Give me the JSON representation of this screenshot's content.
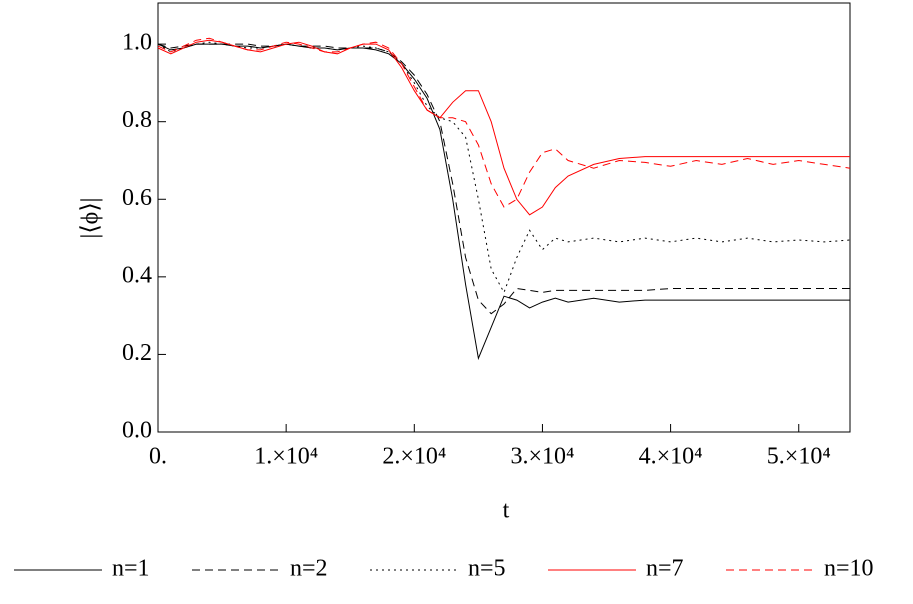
{
  "chart_data": {
    "type": "line",
    "x_label": "t",
    "y_label": "|⟨ϕ⟩|",
    "x": [
      0,
      1000,
      2000,
      3000,
      4000,
      5000,
      6000,
      7000,
      8000,
      9000,
      10000,
      11000,
      12000,
      13000,
      14000,
      15000,
      16000,
      17000,
      18000,
      19000,
      20000,
      21000,
      22000,
      23000,
      24000,
      25000,
      26000,
      27000,
      28000,
      29000,
      30000,
      31000,
      32000,
      34000,
      36000,
      38000,
      40000,
      42000,
      44000,
      46000,
      48000,
      50000,
      52000,
      54000
    ],
    "series": [
      {
        "name": "n=1",
        "color": "#000000",
        "dash": "solid",
        "values": [
          1.0,
          0.985,
          0.99,
          1.0,
          1.0,
          1.0,
          0.995,
          0.995,
          0.99,
          0.995,
          1.0,
          0.995,
          0.99,
          0.99,
          0.985,
          0.99,
          0.99,
          0.985,
          0.975,
          0.95,
          0.91,
          0.86,
          0.78,
          0.6,
          0.38,
          0.19,
          0.27,
          0.35,
          0.34,
          0.32,
          0.335,
          0.345,
          0.335,
          0.345,
          0.335,
          0.34,
          0.34,
          0.34,
          0.34,
          0.34,
          0.34,
          0.34,
          0.34,
          0.34
        ]
      },
      {
        "name": "n=2",
        "color": "#000000",
        "dash": "dashed",
        "values": [
          1.0,
          0.99,
          0.995,
          1.0,
          1.0,
          1.0,
          1.0,
          1.0,
          0.995,
          0.995,
          1.0,
          0.995,
          0.995,
          0.995,
          0.99,
          0.99,
          0.99,
          0.99,
          0.98,
          0.955,
          0.92,
          0.87,
          0.8,
          0.64,
          0.45,
          0.34,
          0.305,
          0.33,
          0.37,
          0.365,
          0.36,
          0.365,
          0.365,
          0.365,
          0.365,
          0.365,
          0.37,
          0.37,
          0.37,
          0.37,
          0.37,
          0.37,
          0.37,
          0.37
        ]
      },
      {
        "name": "n=5",
        "color": "#000000",
        "dash": "dotted",
        "values": [
          1.0,
          0.98,
          0.99,
          1.0,
          1.005,
          1.0,
          0.995,
          0.99,
          0.99,
          0.995,
          1.0,
          0.995,
          0.99,
          0.99,
          0.985,
          0.99,
          0.995,
          0.99,
          0.98,
          0.95,
          0.9,
          0.84,
          0.81,
          0.8,
          0.76,
          0.6,
          0.42,
          0.36,
          0.45,
          0.52,
          0.47,
          0.5,
          0.49,
          0.5,
          0.49,
          0.5,
          0.49,
          0.5,
          0.49,
          0.5,
          0.49,
          0.495,
          0.49,
          0.495
        ]
      },
      {
        "name": "n=7",
        "color": "#ff0000",
        "dash": "solid",
        "values": [
          0.99,
          0.975,
          0.99,
          1.005,
          1.01,
          1.005,
          0.995,
          0.985,
          0.98,
          0.99,
          1.0,
          1.005,
          0.995,
          0.98,
          0.975,
          0.99,
          1.0,
          1.0,
          0.985,
          0.94,
          0.88,
          0.83,
          0.81,
          0.85,
          0.88,
          0.88,
          0.8,
          0.68,
          0.6,
          0.56,
          0.58,
          0.63,
          0.66,
          0.69,
          0.705,
          0.71,
          0.71,
          0.71,
          0.71,
          0.71,
          0.71,
          0.71,
          0.71,
          0.71
        ]
      },
      {
        "name": "n=10",
        "color": "#ff0000",
        "dash": "dashed",
        "values": [
          0.995,
          0.98,
          0.995,
          1.01,
          1.015,
          1.005,
          0.995,
          0.985,
          0.985,
          0.995,
          1.005,
          1.0,
          0.99,
          0.98,
          0.98,
          0.99,
          1.0,
          1.005,
          0.99,
          0.95,
          0.89,
          0.83,
          0.81,
          0.81,
          0.8,
          0.74,
          0.64,
          0.58,
          0.6,
          0.67,
          0.72,
          0.73,
          0.7,
          0.68,
          0.7,
          0.695,
          0.685,
          0.7,
          0.69,
          0.705,
          0.69,
          0.7,
          0.69,
          0.68
        ]
      }
    ],
    "xlim": [
      0,
      54000
    ],
    "ylim": [
      0,
      1.106
    ],
    "xticks": [
      {
        "value": 0,
        "label": "0."
      },
      {
        "value": 10000,
        "label": "1.×10⁴"
      },
      {
        "value": 20000,
        "label": "2.×10⁴"
      },
      {
        "value": 30000,
        "label": "3.×10⁴"
      },
      {
        "value": 40000,
        "label": "4.×10⁴"
      },
      {
        "value": 50000,
        "label": "5.×10⁴"
      }
    ],
    "yticks": [
      {
        "value": 0,
        "label": "0.0"
      },
      0.2,
      0.4,
      0.6,
      0.8,
      {
        "value": 1,
        "label": "1.0"
      }
    ],
    "legend": "bottom"
  }
}
